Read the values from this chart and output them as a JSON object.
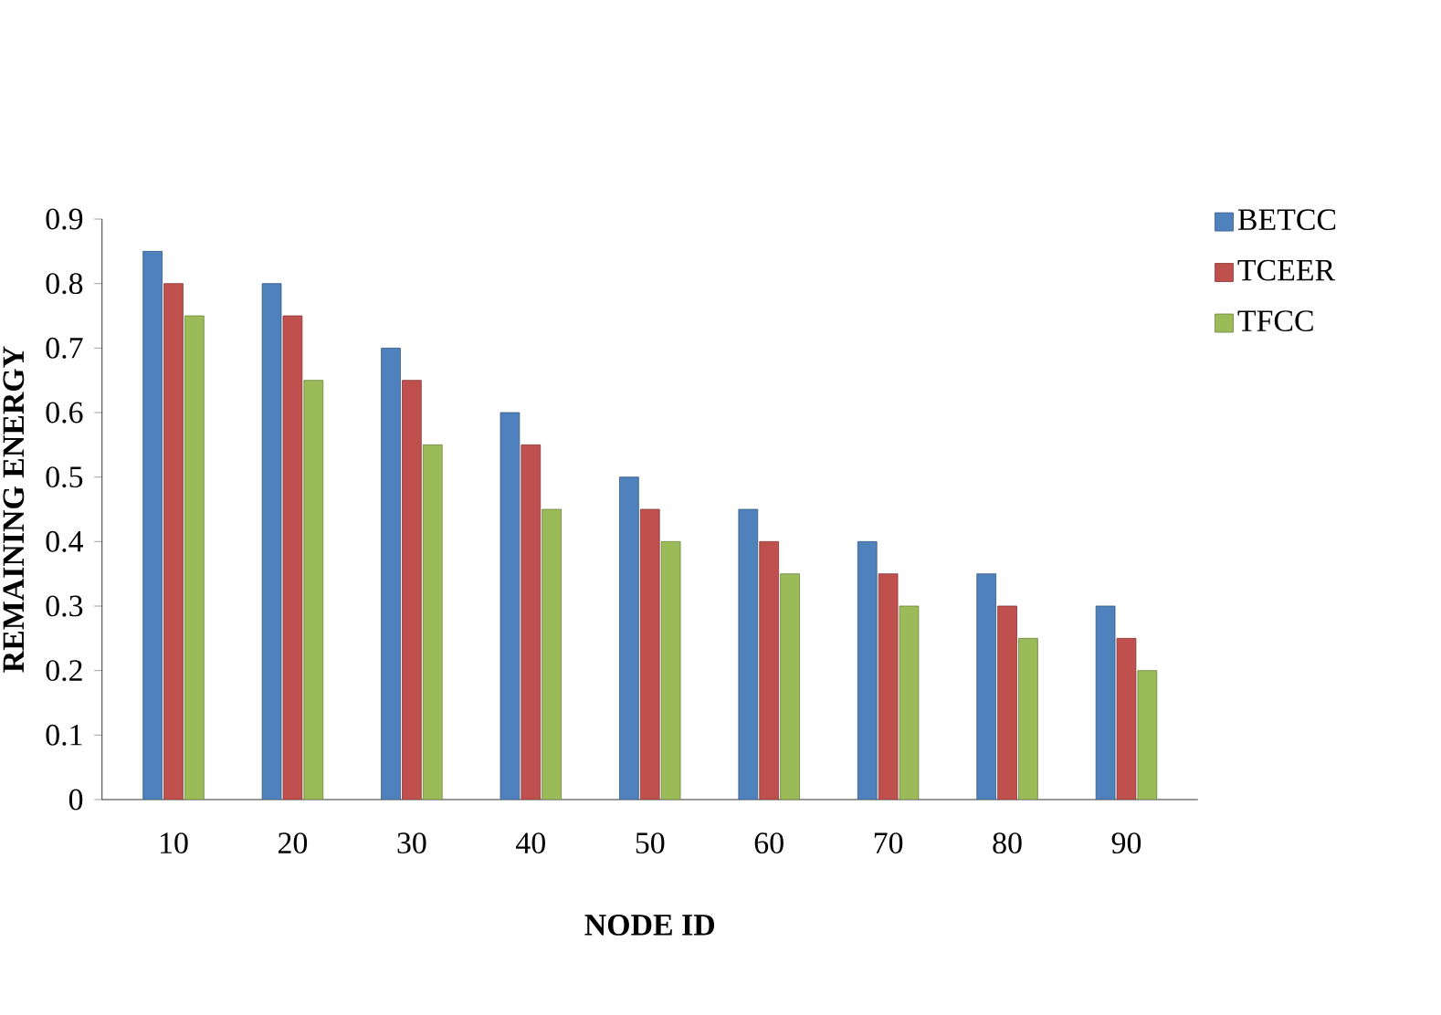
{
  "chart_data": {
    "type": "bar",
    "xlabel": "NODE ID",
    "ylabel": "REMAINING ENERGY",
    "categories": [
      "10",
      "20",
      "30",
      "40",
      "50",
      "60",
      "70",
      "80",
      "90"
    ],
    "series": [
      {
        "name": "BETCC",
        "color": "#4f81bd",
        "values": [
          0.85,
          0.8,
          0.7,
          0.6,
          0.5,
          0.45,
          0.4,
          0.35,
          0.3
        ]
      },
      {
        "name": "TCEER",
        "color": "#c0504d",
        "values": [
          0.8,
          0.75,
          0.65,
          0.55,
          0.45,
          0.4,
          0.35,
          0.3,
          0.25
        ]
      },
      {
        "name": "TFCC",
        "color": "#9bbb59",
        "values": [
          0.75,
          0.65,
          0.55,
          0.45,
          0.4,
          0.35,
          0.3,
          0.25,
          0.2
        ]
      }
    ],
    "ylim": [
      0,
      0.9
    ],
    "yticks": [
      0,
      0.1,
      0.2,
      0.3,
      0.4,
      0.5,
      0.6,
      0.7,
      0.8,
      0.9
    ],
    "legend": "top right",
    "grid": false
  }
}
